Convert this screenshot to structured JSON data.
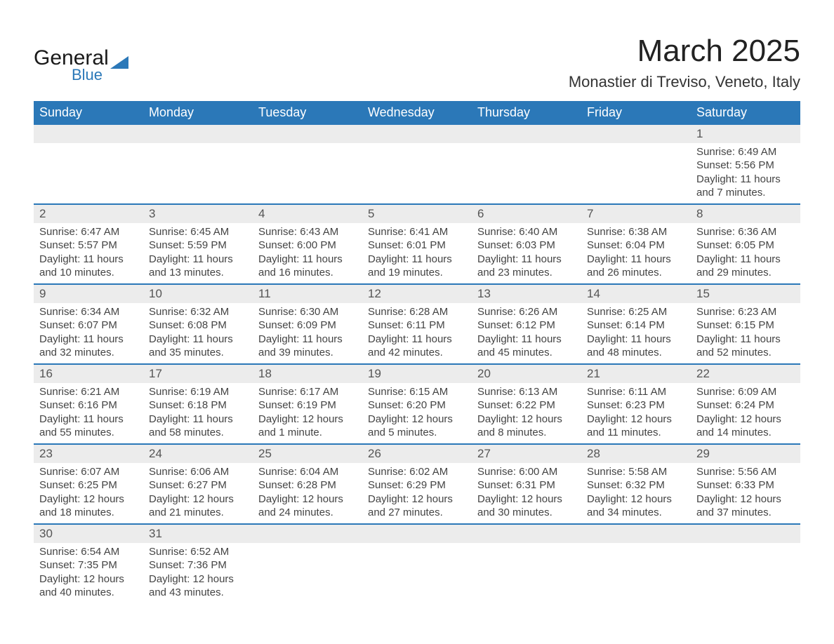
{
  "brand": {
    "word1": "General",
    "word2": "Blue"
  },
  "title": "March 2025",
  "location": "Monastier di Treviso, Veneto, Italy",
  "colors": {
    "header_bg": "#2b78b8",
    "header_text": "#ffffff",
    "row_divider": "#2b78b8",
    "daynum_bg": "#ececec",
    "daynum_text": "#555555",
    "body_text": "#444444",
    "page_bg": "#ffffff",
    "title_text": "#222222"
  },
  "typography": {
    "title_fontsize": 44,
    "subtitle_fontsize": 22,
    "header_fontsize": 18,
    "daynum_fontsize": 17,
    "body_fontsize": 15,
    "font_family": "Arial"
  },
  "weekday_headers": [
    "Sunday",
    "Monday",
    "Tuesday",
    "Wednesday",
    "Thursday",
    "Friday",
    "Saturday"
  ],
  "grid": [
    [
      null,
      null,
      null,
      null,
      null,
      null,
      {
        "n": "1",
        "sunrise": "Sunrise: 6:49 AM",
        "sunset": "Sunset: 5:56 PM",
        "daylight": "Daylight: 11 hours and 7 minutes."
      }
    ],
    [
      {
        "n": "2",
        "sunrise": "Sunrise: 6:47 AM",
        "sunset": "Sunset: 5:57 PM",
        "daylight": "Daylight: 11 hours and 10 minutes."
      },
      {
        "n": "3",
        "sunrise": "Sunrise: 6:45 AM",
        "sunset": "Sunset: 5:59 PM",
        "daylight": "Daylight: 11 hours and 13 minutes."
      },
      {
        "n": "4",
        "sunrise": "Sunrise: 6:43 AM",
        "sunset": "Sunset: 6:00 PM",
        "daylight": "Daylight: 11 hours and 16 minutes."
      },
      {
        "n": "5",
        "sunrise": "Sunrise: 6:41 AM",
        "sunset": "Sunset: 6:01 PM",
        "daylight": "Daylight: 11 hours and 19 minutes."
      },
      {
        "n": "6",
        "sunrise": "Sunrise: 6:40 AM",
        "sunset": "Sunset: 6:03 PM",
        "daylight": "Daylight: 11 hours and 23 minutes."
      },
      {
        "n": "7",
        "sunrise": "Sunrise: 6:38 AM",
        "sunset": "Sunset: 6:04 PM",
        "daylight": "Daylight: 11 hours and 26 minutes."
      },
      {
        "n": "8",
        "sunrise": "Sunrise: 6:36 AM",
        "sunset": "Sunset: 6:05 PM",
        "daylight": "Daylight: 11 hours and 29 minutes."
      }
    ],
    [
      {
        "n": "9",
        "sunrise": "Sunrise: 6:34 AM",
        "sunset": "Sunset: 6:07 PM",
        "daylight": "Daylight: 11 hours and 32 minutes."
      },
      {
        "n": "10",
        "sunrise": "Sunrise: 6:32 AM",
        "sunset": "Sunset: 6:08 PM",
        "daylight": "Daylight: 11 hours and 35 minutes."
      },
      {
        "n": "11",
        "sunrise": "Sunrise: 6:30 AM",
        "sunset": "Sunset: 6:09 PM",
        "daylight": "Daylight: 11 hours and 39 minutes."
      },
      {
        "n": "12",
        "sunrise": "Sunrise: 6:28 AM",
        "sunset": "Sunset: 6:11 PM",
        "daylight": "Daylight: 11 hours and 42 minutes."
      },
      {
        "n": "13",
        "sunrise": "Sunrise: 6:26 AM",
        "sunset": "Sunset: 6:12 PM",
        "daylight": "Daylight: 11 hours and 45 minutes."
      },
      {
        "n": "14",
        "sunrise": "Sunrise: 6:25 AM",
        "sunset": "Sunset: 6:14 PM",
        "daylight": "Daylight: 11 hours and 48 minutes."
      },
      {
        "n": "15",
        "sunrise": "Sunrise: 6:23 AM",
        "sunset": "Sunset: 6:15 PM",
        "daylight": "Daylight: 11 hours and 52 minutes."
      }
    ],
    [
      {
        "n": "16",
        "sunrise": "Sunrise: 6:21 AM",
        "sunset": "Sunset: 6:16 PM",
        "daylight": "Daylight: 11 hours and 55 minutes."
      },
      {
        "n": "17",
        "sunrise": "Sunrise: 6:19 AM",
        "sunset": "Sunset: 6:18 PM",
        "daylight": "Daylight: 11 hours and 58 minutes."
      },
      {
        "n": "18",
        "sunrise": "Sunrise: 6:17 AM",
        "sunset": "Sunset: 6:19 PM",
        "daylight": "Daylight: 12 hours and 1 minute."
      },
      {
        "n": "19",
        "sunrise": "Sunrise: 6:15 AM",
        "sunset": "Sunset: 6:20 PM",
        "daylight": "Daylight: 12 hours and 5 minutes."
      },
      {
        "n": "20",
        "sunrise": "Sunrise: 6:13 AM",
        "sunset": "Sunset: 6:22 PM",
        "daylight": "Daylight: 12 hours and 8 minutes."
      },
      {
        "n": "21",
        "sunrise": "Sunrise: 6:11 AM",
        "sunset": "Sunset: 6:23 PM",
        "daylight": "Daylight: 12 hours and 11 minutes."
      },
      {
        "n": "22",
        "sunrise": "Sunrise: 6:09 AM",
        "sunset": "Sunset: 6:24 PM",
        "daylight": "Daylight: 12 hours and 14 minutes."
      }
    ],
    [
      {
        "n": "23",
        "sunrise": "Sunrise: 6:07 AM",
        "sunset": "Sunset: 6:25 PM",
        "daylight": "Daylight: 12 hours and 18 minutes."
      },
      {
        "n": "24",
        "sunrise": "Sunrise: 6:06 AM",
        "sunset": "Sunset: 6:27 PM",
        "daylight": "Daylight: 12 hours and 21 minutes."
      },
      {
        "n": "25",
        "sunrise": "Sunrise: 6:04 AM",
        "sunset": "Sunset: 6:28 PM",
        "daylight": "Daylight: 12 hours and 24 minutes."
      },
      {
        "n": "26",
        "sunrise": "Sunrise: 6:02 AM",
        "sunset": "Sunset: 6:29 PM",
        "daylight": "Daylight: 12 hours and 27 minutes."
      },
      {
        "n": "27",
        "sunrise": "Sunrise: 6:00 AM",
        "sunset": "Sunset: 6:31 PM",
        "daylight": "Daylight: 12 hours and 30 minutes."
      },
      {
        "n": "28",
        "sunrise": "Sunrise: 5:58 AM",
        "sunset": "Sunset: 6:32 PM",
        "daylight": "Daylight: 12 hours and 34 minutes."
      },
      {
        "n": "29",
        "sunrise": "Sunrise: 5:56 AM",
        "sunset": "Sunset: 6:33 PM",
        "daylight": "Daylight: 12 hours and 37 minutes."
      }
    ],
    [
      {
        "n": "30",
        "sunrise": "Sunrise: 6:54 AM",
        "sunset": "Sunset: 7:35 PM",
        "daylight": "Daylight: 12 hours and 40 minutes."
      },
      {
        "n": "31",
        "sunrise": "Sunrise: 6:52 AM",
        "sunset": "Sunset: 7:36 PM",
        "daylight": "Daylight: 12 hours and 43 minutes."
      },
      null,
      null,
      null,
      null,
      null
    ]
  ]
}
